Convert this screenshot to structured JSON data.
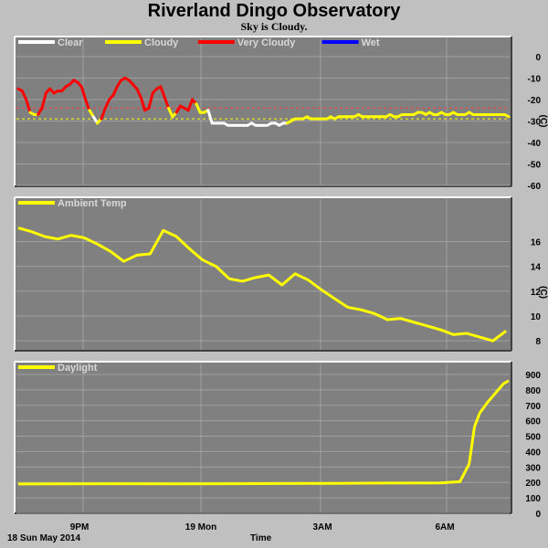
{
  "page": {
    "title": "Riverland Dingo Observatory",
    "subtitle": "Sky is Cloudy.",
    "date_label": "18 Sun May 2014",
    "time_axis_label": "Time"
  },
  "colors": {
    "panel_bg": "#808080",
    "page_bg": "#c0c0c0",
    "grid": "#a0a0a0",
    "clear": "#ffffff",
    "cloudy": "#ffff00",
    "very_cloudy": "#ff0000",
    "wet": "#0000ff"
  },
  "chart_data": [
    {
      "type": "line",
      "name": "sky",
      "ylabel": "(C)",
      "ylim": [
        -60,
        0
      ],
      "yticks": [
        0,
        -10,
        -20,
        -30,
        -40,
        -50,
        -60
      ],
      "threshold_lines": [
        {
          "value": -24,
          "color": "#ff4040"
        },
        {
          "value": -29,
          "color": "#ffff00"
        }
      ],
      "legend": [
        {
          "label": "Clear",
          "color": "#ffffff"
        },
        {
          "label": "Cloudy",
          "color": "#ffff00"
        },
        {
          "label": "Very Cloudy",
          "color": "#ff0000"
        },
        {
          "label": "Wet",
          "color": "#0000ff"
        }
      ],
      "x_hours_since_start": [
        0,
        0.3,
        0.6,
        0.9,
        1.2,
        1.5,
        1.8,
        2.1,
        2.4,
        2.7,
        3.0,
        3.3,
        3.6,
        3.9,
        4.2,
        4.5,
        4.8,
        5.1,
        5.4,
        5.7,
        6.0,
        6.3,
        6.6,
        6.9,
        7.2,
        7.5,
        7.8,
        8.1,
        8.4,
        8.7,
        9.0,
        9.3,
        9.6,
        9.9,
        10.2,
        10.5,
        10.8,
        11.1,
        11.4,
        11.7,
        12.0,
        12.3,
        12.6,
        12.9,
        13.2,
        13.5,
        13.8,
        14.1,
        14.4,
        14.7,
        15.0,
        15.3,
        15.6,
        15.9,
        16.2,
        16.5,
        16.8,
        17.1,
        17.4,
        17.7,
        18.0,
        18.3,
        18.6,
        18.9,
        19.2,
        19.5,
        19.8,
        20.1,
        20.4,
        20.7,
        21.0,
        21.3,
        21.6,
        21.9,
        22.2,
        22.5,
        22.8,
        23.1,
        23.4,
        23.7,
        24.0,
        24.3,
        24.6,
        24.9,
        25.2,
        25.5,
        25.8,
        26.1,
        26.4,
        26.7,
        27.0,
        27.3,
        27.6,
        27.9,
        28.2,
        28.5,
        28.8,
        29.1,
        29.4,
        29.7,
        30.0,
        30.3,
        30.6,
        30.9,
        31.2,
        31.5,
        31.8,
        32.1,
        32.4,
        32.7,
        33.0,
        33.3,
        33.6,
        33.9,
        34.2,
        34.5,
        34.8,
        35.1,
        35.4,
        35.7,
        36.0,
        36.3,
        36.6,
        36.9,
        37.2
      ],
      "series": [
        {
          "name": "Sky Temp",
          "values": [
            -15,
            -16,
            -20,
            -26,
            -27,
            -27,
            -24,
            -17,
            -15,
            -17,
            -16,
            -16,
            -14,
            -13,
            -11,
            -12,
            -14,
            -20,
            -25,
            -28,
            -31,
            -29,
            -24,
            -20,
            -18,
            -14,
            -11,
            -10,
            -11,
            -13,
            -15,
            -19,
            -25,
            -24,
            -17,
            -15,
            -14,
            -19,
            -24,
            -28,
            -26,
            -23,
            -24,
            -25,
            -20,
            -22,
            -26,
            -26,
            -25,
            -31,
            -31,
            -31,
            -31,
            -32,
            -32,
            -32,
            -32,
            -32,
            -32,
            -31,
            -32,
            -32,
            -32,
            -32,
            -31,
            -31,
            -32,
            -31,
            -31,
            -30,
            -29,
            -29,
            -29,
            -28,
            -29,
            -29,
            -29,
            -29,
            -29,
            -28,
            -29,
            -28,
            -28,
            -28,
            -28,
            -28,
            -27,
            -28,
            -28,
            -28,
            -28,
            -28,
            -28,
            -28,
            -27,
            -28,
            -28,
            -27,
            -27,
            -27,
            -27,
            -26,
            -26,
            -27,
            -26,
            -27,
            -27,
            -26,
            -27,
            -27,
            -26,
            -27,
            -27,
            -27,
            -26,
            -27,
            -27,
            -27,
            -27,
            -27,
            -27,
            -27,
            -27,
            -27,
            -28
          ],
          "status": [
            "vc",
            "vc",
            "vc",
            "vc",
            "c",
            "c",
            "vc",
            "vc",
            "vc",
            "vc",
            "vc",
            "vc",
            "vc",
            "vc",
            "vc",
            "vc",
            "vc",
            "vc",
            "vc",
            "c",
            "clr",
            "c",
            "vc",
            "vc",
            "vc",
            "vc",
            "vc",
            "vc",
            "vc",
            "vc",
            "vc",
            "vc",
            "vc",
            "vc",
            "vc",
            "vc",
            "vc",
            "vc",
            "vc",
            "c",
            "c",
            "vc",
            "vc",
            "vc",
            "vc",
            "vc",
            "c",
            "c",
            "c",
            "clr",
            "clr",
            "clr",
            "clr",
            "clr",
            "clr",
            "clr",
            "clr",
            "clr",
            "clr",
            "clr",
            "clr",
            "clr",
            "clr",
            "clr",
            "clr",
            "clr",
            "clr",
            "clr",
            "clr",
            "c",
            "c",
            "c",
            "c",
            "c",
            "c",
            "c",
            "c",
            "c",
            "c",
            "c",
            "c",
            "c",
            "c",
            "c",
            "c",
            "c",
            "c",
            "c",
            "c",
            "c",
            "c",
            "c",
            "c",
            "c",
            "c",
            "c",
            "c",
            "c",
            "c",
            "c",
            "c",
            "c",
            "c",
            "c",
            "c",
            "c",
            "c",
            "c",
            "c",
            "c",
            "c",
            "c",
            "c",
            "c",
            "c",
            "c",
            "c",
            "c",
            "c",
            "c",
            "c",
            "c",
            "c",
            "c",
            "c"
          ]
        }
      ]
    },
    {
      "type": "line",
      "name": "ambient",
      "ylabel": "(C)",
      "ylim": [
        7.2,
        17.8
      ],
      "yticks": [
        16,
        14,
        12,
        10,
        8
      ],
      "legend": [
        {
          "label": "Ambient Temp",
          "color": "#ffff00"
        }
      ],
      "series": [
        {
          "name": "Ambient Temp",
          "x": [
            0,
            1,
            2,
            3,
            4,
            5,
            6,
            7,
            8,
            9,
            10,
            11,
            12,
            13,
            14,
            15,
            16,
            17,
            18,
            19,
            20,
            21,
            22,
            23,
            24,
            25,
            26,
            27,
            28,
            29,
            30,
            31,
            32,
            33,
            34,
            35,
            36,
            37
          ],
          "values": [
            17.1,
            16.8,
            16.4,
            16.2,
            16.5,
            16.3,
            15.8,
            15.2,
            14.4,
            14.9,
            15.0,
            16.9,
            16.4,
            15.4,
            14.5,
            14.0,
            13.0,
            12.8,
            13.1,
            13.3,
            12.5,
            13.4,
            12.9,
            12.1,
            11.4,
            10.7,
            10.5,
            10.2,
            9.7,
            9.8,
            9.5,
            9.2,
            8.9,
            8.5,
            8.6,
            8.3,
            8.0,
            8.8
          ]
        }
      ]
    },
    {
      "type": "line",
      "name": "daylight",
      "ylabel": "",
      "ylim": [
        0,
        900
      ],
      "yticks": [
        900,
        800,
        700,
        600,
        500,
        400,
        300,
        200,
        100,
        0
      ],
      "legend": [
        {
          "label": "Daylight",
          "color": "#ffff00"
        }
      ],
      "series": [
        {
          "name": "Daylight",
          "x": [
            0,
            4,
            8,
            12,
            16,
            20,
            24,
            28,
            32,
            33.5,
            34.2,
            34.6,
            35.0,
            35.6,
            36.2,
            36.8,
            37.2
          ],
          "values": [
            190,
            191,
            192,
            191,
            192,
            193,
            194,
            196,
            197,
            205,
            320,
            560,
            650,
            720,
            780,
            840,
            860
          ]
        }
      ]
    }
  ],
  "x_axis": {
    "ticks": [
      {
        "label": "9PM",
        "hours": 7
      },
      {
        "label": "19 Mon",
        "hours": 20
      },
      {
        "label": "3AM",
        "hours": 33
      },
      {
        "label": "6AM",
        "hours": 47
      }
    ]
  }
}
